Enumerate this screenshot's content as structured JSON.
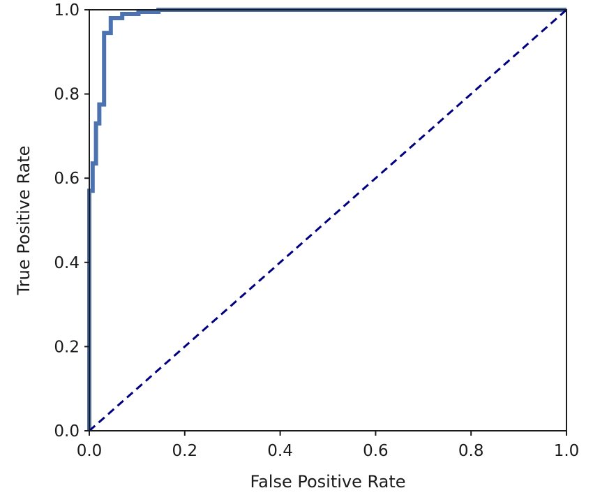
{
  "chart_data": {
    "type": "line",
    "title": "",
    "xlabel": "False Positive Rate",
    "ylabel": "True Positive Rate",
    "xlim": [
      0.0,
      1.0
    ],
    "ylim": [
      0.0,
      1.0
    ],
    "xticks": [
      "0.0",
      "0.2",
      "0.4",
      "0.6",
      "0.8",
      "1.0"
    ],
    "yticks": [
      "0.0",
      "0.2",
      "0.4",
      "0.6",
      "0.8",
      "1.0"
    ],
    "grid": false,
    "legend": "none",
    "series": [
      {
        "style": "solid",
        "color": "#4c72b0",
        "x": [
          0.0,
          0.0,
          0.007,
          0.007,
          0.014,
          0.014,
          0.021,
          0.021,
          0.031,
          0.031,
          0.045,
          0.045,
          0.069,
          0.069,
          0.103,
          0.103,
          0.145,
          0.145,
          1.0
        ],
        "y": [
          0.0,
          0.57,
          0.57,
          0.635,
          0.635,
          0.73,
          0.73,
          0.775,
          0.775,
          0.945,
          0.945,
          0.98,
          0.98,
          0.99,
          0.99,
          0.995,
          0.995,
          1.0,
          1.0
        ]
      },
      {
        "style": "dashed",
        "color": "#000080",
        "x": [
          0.0,
          1.0
        ],
        "y": [
          0.0,
          1.0
        ]
      }
    ]
  }
}
